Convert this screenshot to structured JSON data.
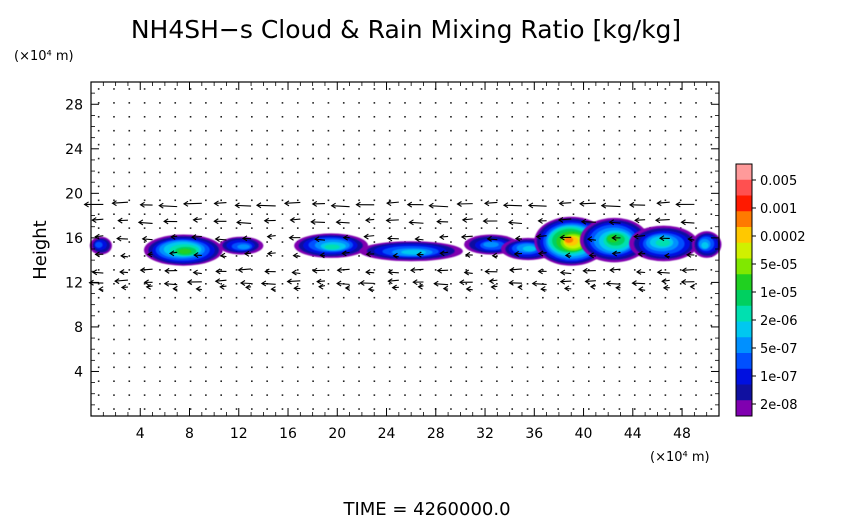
{
  "chart_data": {
    "type": "heatmap",
    "title": "NH4SH−s Cloud & Rain Mixing Ratio [kg/kg]",
    "ylabel": "Height",
    "x_unit_label": "(×10⁴ m)",
    "y_unit_label": "(×10⁴ m)",
    "xlim": [
      0,
      51
    ],
    "ylim": [
      0,
      30
    ],
    "x_ticks": [
      "4",
      "8",
      "12",
      "16",
      "20",
      "24",
      "28",
      "32",
      "36",
      "40",
      "44",
      "48"
    ],
    "x_tick_values": [
      4,
      8,
      12,
      16,
      20,
      24,
      28,
      32,
      36,
      40,
      44,
      48
    ],
    "y_ticks": [
      "4",
      "8",
      "12",
      "16",
      "20",
      "24",
      "28"
    ],
    "y_tick_values": [
      4,
      8,
      12,
      16,
      20,
      24,
      28
    ],
    "colorbar": {
      "labels": [
        "0.005",
        "0.001",
        "0.0002",
        "5e-05",
        "1e-05",
        "2e-06",
        "5e-07",
        "1e-07",
        "2e-08"
      ],
      "colors": [
        "#ff9a9a",
        "#ff5050",
        "#ff1a00",
        "#ff7a00",
        "#ffc800",
        "#d0f000",
        "#80e800",
        "#20d020",
        "#00d060",
        "#00e0b0",
        "#00c8f0",
        "#0090ff",
        "#0050ff",
        "#0010e0",
        "#1010a0",
        "#8000b0"
      ]
    },
    "cloud_blobs": [
      {
        "x": 0.8,
        "y": 15.3,
        "rx": 0.9,
        "ry": 0.8,
        "level": 4
      },
      {
        "x": 7.5,
        "y": 14.9,
        "rx": 3.2,
        "ry": 1.4,
        "level": 9
      },
      {
        "x": 12.2,
        "y": 15.3,
        "rx": 1.8,
        "ry": 0.8,
        "level": 5
      },
      {
        "x": 19.5,
        "y": 15.3,
        "rx": 3.0,
        "ry": 1.1,
        "level": 7
      },
      {
        "x": 26.0,
        "y": 14.8,
        "rx": 4.2,
        "ry": 0.9,
        "level": 6
      },
      {
        "x": 32.5,
        "y": 15.4,
        "rx": 2.2,
        "ry": 0.9,
        "level": 5
      },
      {
        "x": 35.5,
        "y": 15.0,
        "rx": 2.2,
        "ry": 1.0,
        "level": 6
      },
      {
        "x": 39.0,
        "y": 15.7,
        "rx": 3.0,
        "ry": 2.2,
        "level": 13
      },
      {
        "x": 42.5,
        "y": 15.8,
        "rx": 2.8,
        "ry": 2.0,
        "level": 9
      },
      {
        "x": 46.5,
        "y": 15.5,
        "rx": 2.8,
        "ry": 1.6,
        "level": 7
      },
      {
        "x": 50.0,
        "y": 15.4,
        "rx": 1.2,
        "ry": 1.2,
        "level": 6
      }
    ],
    "wind_rows": [
      {
        "y": 19.0,
        "u": -1.2
      },
      {
        "y": 17.5,
        "u": -0.9
      },
      {
        "y": 16.0,
        "u": -0.7
      },
      {
        "y": 14.5,
        "u": -0.5
      },
      {
        "y": 13.0,
        "u": -0.8
      },
      {
        "y": 11.5,
        "u": -0.4
      },
      {
        "y": 12.0,
        "u": -0.9
      }
    ]
  },
  "footer": {
    "time_label": "TIME  =  4260000.0"
  }
}
